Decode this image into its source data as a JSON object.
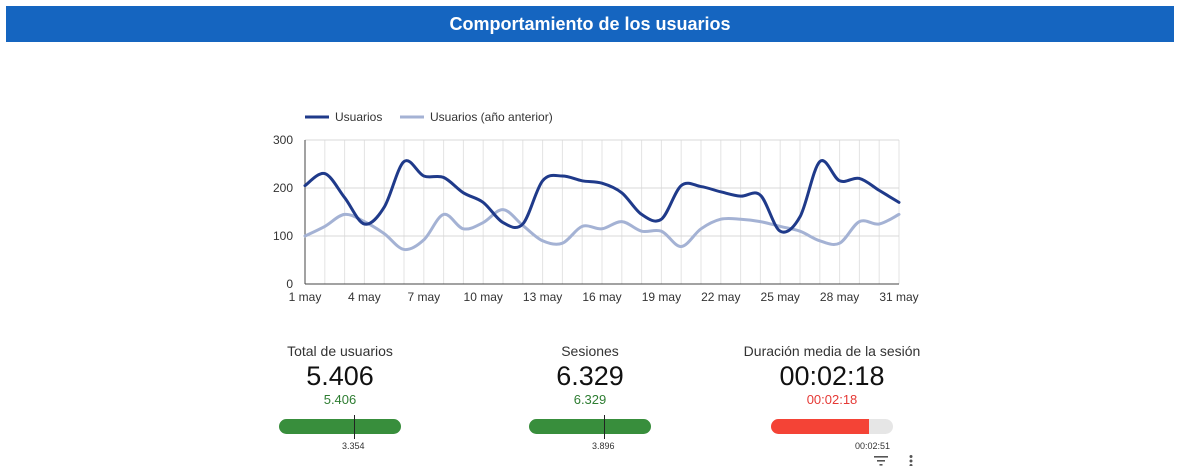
{
  "header": {
    "title": "Comportamiento de los usuarios",
    "background": "#1565c0"
  },
  "chart_data": {
    "type": "line",
    "title": "",
    "xlabel": "",
    "ylabel": "",
    "ylim": [
      0,
      300
    ],
    "yticks": [
      0,
      100,
      200,
      300
    ],
    "x": [
      "1 may",
      "2 may",
      "3 may",
      "4 may",
      "5 may",
      "6 may",
      "7 may",
      "8 may",
      "9 may",
      "10 may",
      "11 may",
      "12 may",
      "13 may",
      "14 may",
      "15 may",
      "16 may",
      "17 may",
      "18 may",
      "19 may",
      "20 may",
      "21 may",
      "22 may",
      "23 may",
      "24 may",
      "25 may",
      "26 may",
      "27 may",
      "28 may",
      "29 may",
      "30 may",
      "31 may"
    ],
    "xticks": [
      "1 may",
      "4 may",
      "7 may",
      "10 may",
      "13 may",
      "16 may",
      "19 may",
      "22 may",
      "25 may",
      "28 may",
      "31 may"
    ],
    "grid": true,
    "legend_position": "top-left",
    "series": [
      {
        "name": "Usuarios",
        "color": "#1f3a8a",
        "values": [
          205,
          230,
          180,
          125,
          160,
          255,
          225,
          222,
          190,
          170,
          128,
          125,
          215,
          225,
          215,
          210,
          190,
          145,
          135,
          205,
          203,
          192,
          183,
          185,
          110,
          140,
          255,
          215,
          220,
          195,
          170
        ]
      },
      {
        "name": "Usuarios (año anterior)",
        "color": "#a4b2d4",
        "values": [
          100,
          120,
          145,
          130,
          105,
          72,
          92,
          145,
          115,
          128,
          155,
          122,
          90,
          85,
          120,
          115,
          130,
          110,
          110,
          78,
          115,
          135,
          135,
          130,
          120,
          110,
          90,
          85,
          130,
          125,
          145
        ]
      }
    ]
  },
  "scorecards": [
    {
      "label": "Total de usuarios",
      "value": "5.406",
      "delta": "5.406",
      "delta_color": "#2e7d32",
      "bar_color": "#388e3c",
      "progress": 1.0,
      "marker": 0.62,
      "target": "3.354"
    },
    {
      "label": "Sesiones",
      "value": "6.329",
      "delta": "6.329",
      "delta_color": "#2e7d32",
      "bar_color": "#388e3c",
      "progress": 1.0,
      "marker": 0.62,
      "target": "3.896"
    },
    {
      "label": "Duración media de la sesión",
      "value": "00:02:18",
      "delta": "00:02:18",
      "delta_color": "#e53935",
      "bar_color": "#f44336",
      "progress": 0.8,
      "marker": 1.0,
      "target": "00:02:51"
    }
  ],
  "icons": [
    "filter-icon",
    "more-vert-icon"
  ]
}
